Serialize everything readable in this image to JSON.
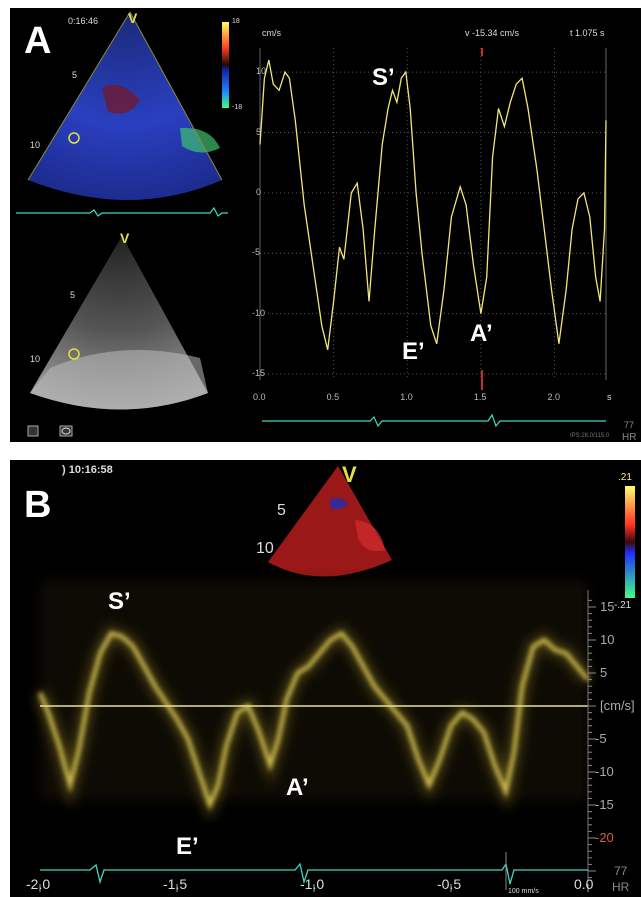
{
  "panel_a": {
    "letter": "A",
    "time": "0:16:46",
    "view_marker": "V",
    "view_marker_lower": "V",
    "depth_labels": [
      "5",
      "10"
    ],
    "depth_labels_lower": [
      "5",
      "10"
    ],
    "color_scale_top": "18",
    "color_scale_bottom": "-18",
    "trace": {
      "y_unit": "cm/s",
      "x_unit": "s",
      "velocity_readout": "v -15.34 cm/s",
      "time_readout": "t 1.075 s",
      "y_ticks": [
        "10",
        "5",
        "0",
        "-5",
        "-10",
        "-15"
      ],
      "x_ticks": [
        "0.0",
        "0.5",
        "1.0",
        "1.5",
        "2.0"
      ],
      "waves": [
        "S’",
        "E’",
        "A’"
      ],
      "hr_value": "77",
      "hr_label": "HR",
      "footer": "IPS:28.0/115.0"
    }
  },
  "panel_b": {
    "letter": "B",
    "time": ") 10:16:58",
    "view_marker": "V",
    "depth_labels": [
      "5",
      "10"
    ],
    "scale_top": ".21",
    "scale_bottom": "-.21",
    "y_ticks": [
      "15",
      "10",
      "5",
      "[cm/s]",
      "-5",
      "-10",
      "-15",
      "-20"
    ],
    "x_ticks": [
      "-2.0",
      "-1.5",
      "-1.0",
      "-0.5",
      "0.0"
    ],
    "sweep_speed": "100 mm/s",
    "hr_value": "77",
    "hr_label": "HR",
    "waves": [
      "S’",
      "E’",
      "A’"
    ]
  },
  "colors": {
    "doppler_trace": "#f2e67a",
    "ecg": "#3fd9c4",
    "baseline": "#e8e0a0",
    "background": "#000000"
  }
}
